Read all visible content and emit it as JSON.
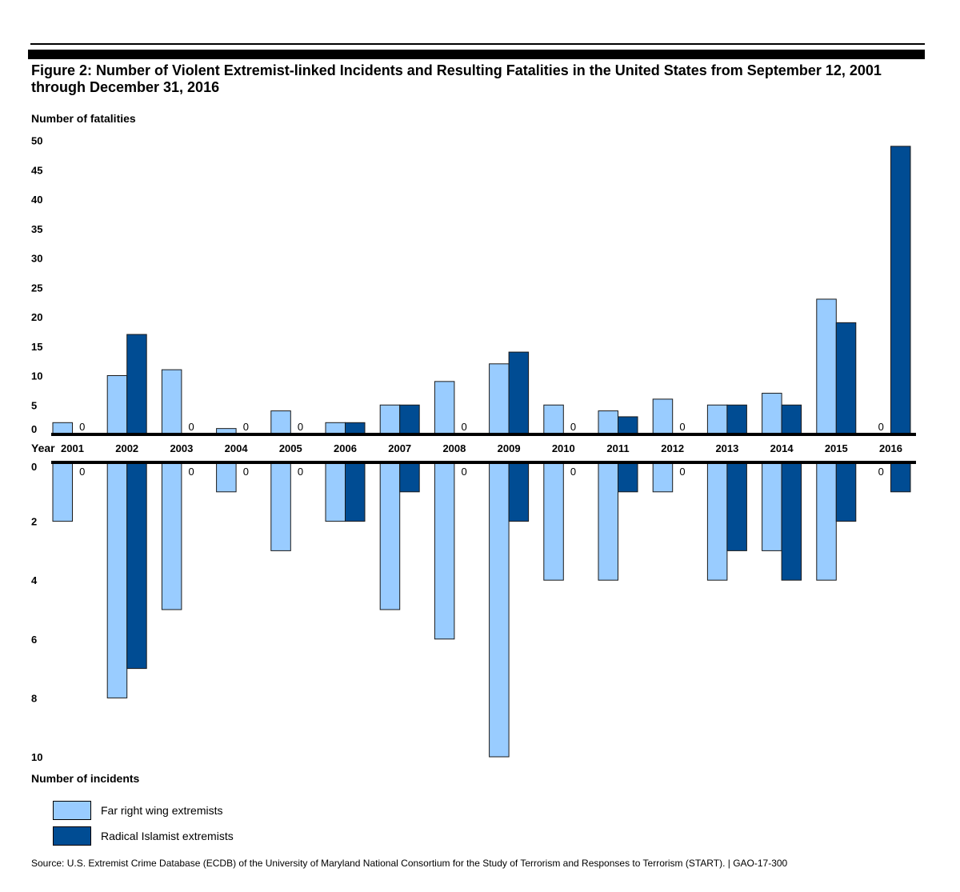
{
  "figure": {
    "title": "Figure 2: Number of Violent Extremist-linked Incidents and Resulting Fatalities in the United States from September 12, 2001 through December 31, 2016",
    "source": "Source: U.S. Extremist Crime Database (ECDB) of the University of Maryland National Consortium for the Study of Terrorism and Responses to Terrorism (START).  |  GAO-17-300"
  },
  "colors": {
    "far_right": "#99ccff",
    "islamist": "#004c93",
    "axis": "#000000"
  },
  "legend": [
    {
      "key": "far_right",
      "label": "Far right wing extremists"
    },
    {
      "key": "islamist",
      "label": "Radical Islamist extremists"
    }
  ],
  "chart_data": [
    {
      "type": "bar",
      "ylabel": "Number of fatalities",
      "xlabel": "Year",
      "ylim": [
        0,
        50
      ],
      "yticks": [
        "0",
        "5",
        "10",
        "15",
        "20",
        "25",
        "30",
        "35",
        "40",
        "45",
        "50"
      ],
      "categories": [
        "2001",
        "2002",
        "2003",
        "2004",
        "2005",
        "2006",
        "2007",
        "2008",
        "2009",
        "2010",
        "2011",
        "2012",
        "2013",
        "2014",
        "2015",
        "2016"
      ],
      "series": [
        {
          "name": "Far right wing extremists",
          "values": [
            2,
            10,
            11,
            1,
            4,
            2,
            5,
            9,
            12,
            5,
            4,
            6,
            5,
            7,
            23,
            0
          ]
        },
        {
          "name": "Radical Islamist extremists",
          "values": [
            0,
            17,
            0,
            0,
            0,
            2,
            5,
            0,
            14,
            0,
            3,
            0,
            5,
            5,
            19,
            49
          ]
        }
      ],
      "zero_label": "0"
    },
    {
      "type": "bar",
      "ylabel": "Number of incidents",
      "ylim": [
        0,
        10
      ],
      "yticks": [
        "0",
        "2",
        "4",
        "6",
        "8",
        "10"
      ],
      "categories": [
        "2001",
        "2002",
        "2003",
        "2004",
        "2005",
        "2006",
        "2007",
        "2008",
        "2009",
        "2010",
        "2011",
        "2012",
        "2013",
        "2014",
        "2015",
        "2016"
      ],
      "series": [
        {
          "name": "Far right wing extremists",
          "values": [
            2,
            8,
            5,
            1,
            3,
            2,
            5,
            6,
            10,
            4,
            4,
            1,
            4,
            3,
            4,
            0
          ]
        },
        {
          "name": "Radical Islamist extremists",
          "values": [
            0,
            7,
            0,
            0,
            0,
            2,
            1,
            0,
            2,
            0,
            1,
            0,
            3,
            4,
            2,
            1
          ]
        }
      ],
      "zero_label": "0"
    }
  ]
}
